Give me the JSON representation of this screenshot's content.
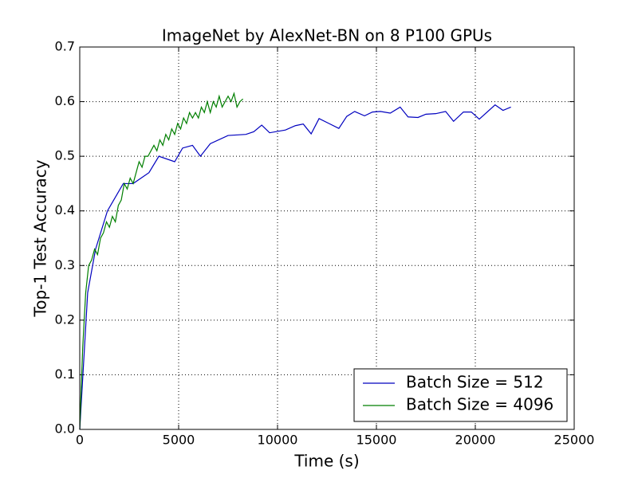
{
  "chart_data": {
    "type": "line",
    "title": "ImageNet by AlexNet-BN on 8 P100 GPUs",
    "xlabel": "Time (s)",
    "ylabel": "Top-1 Test Accuracy",
    "xlim": [
      0,
      25000
    ],
    "xticks": [
      0,
      5000,
      10000,
      15000,
      20000,
      25000
    ],
    "ylim": [
      0,
      0.7
    ],
    "yticks": [
      {
        "value": 0,
        "label": "0.0"
      },
      0.1,
      0.2,
      0.3,
      0.4,
      0.5,
      0.6,
      0.7
    ],
    "grid": true,
    "legend": "lower right",
    "series": [
      {
        "name": "Batch Size = 512",
        "color": "#0000bf",
        "x": [
          0,
          400,
          800,
          1400,
          2200,
          2700,
          3500,
          4000,
          4800,
          5200,
          5700,
          6100,
          6600,
          7500,
          8400,
          8800,
          9200,
          9600,
          10400,
          10900,
          11300,
          11700,
          12100,
          12600,
          13100,
          13500,
          13900,
          14400,
          14800,
          15200,
          15700,
          16200,
          16600,
          17100,
          17500,
          18000,
          18500,
          18900,
          19400,
          19800,
          20200,
          21000,
          21400,
          21800
        ],
        "values": [
          0,
          0.25,
          0.33,
          0.4,
          0.45,
          0.45,
          0.47,
          0.5,
          0.49,
          0.515,
          0.52,
          0.5,
          0.523,
          0.538,
          0.54,
          0.545,
          0.557,
          0.543,
          0.548,
          0.556,
          0.559,
          0.541,
          0.569,
          0.56,
          0.551,
          0.573,
          0.582,
          0.574,
          0.581,
          0.582,
          0.579,
          0.59,
          0.572,
          0.571,
          0.577,
          0.578,
          0.582,
          0.564,
          0.581,
          0.581,
          0.568,
          0.594,
          0.584,
          0.59
        ]
      },
      {
        "name": "Batch Size = 4096",
        "color": "#007f00",
        "x": [
          0,
          150,
          300,
          450,
          600,
          750,
          900,
          1050,
          1200,
          1350,
          1500,
          1650,
          1800,
          1950,
          2100,
          2250,
          2400,
          2550,
          2700,
          2850,
          3000,
          3150,
          3300,
          3450,
          3600,
          3750,
          3900,
          4050,
          4200,
          4350,
          4500,
          4650,
          4800,
          4950,
          5100,
          5250,
          5400,
          5550,
          5700,
          5850,
          6000,
          6150,
          6300,
          6450,
          6600,
          6750,
          6900,
          7050,
          7200,
          7350,
          7500,
          7650,
          7800,
          7950,
          8100,
          8250
        ],
        "values": [
          0,
          0.15,
          0.25,
          0.3,
          0.31,
          0.33,
          0.32,
          0.35,
          0.36,
          0.38,
          0.37,
          0.39,
          0.38,
          0.41,
          0.42,
          0.45,
          0.44,
          0.46,
          0.45,
          0.47,
          0.49,
          0.48,
          0.5,
          0.5,
          0.51,
          0.52,
          0.51,
          0.53,
          0.52,
          0.54,
          0.53,
          0.55,
          0.54,
          0.56,
          0.55,
          0.57,
          0.56,
          0.58,
          0.57,
          0.58,
          0.57,
          0.59,
          0.58,
          0.6,
          0.58,
          0.6,
          0.59,
          0.61,
          0.59,
          0.6,
          0.61,
          0.6,
          0.615,
          0.59,
          0.6,
          0.605
        ]
      }
    ]
  }
}
